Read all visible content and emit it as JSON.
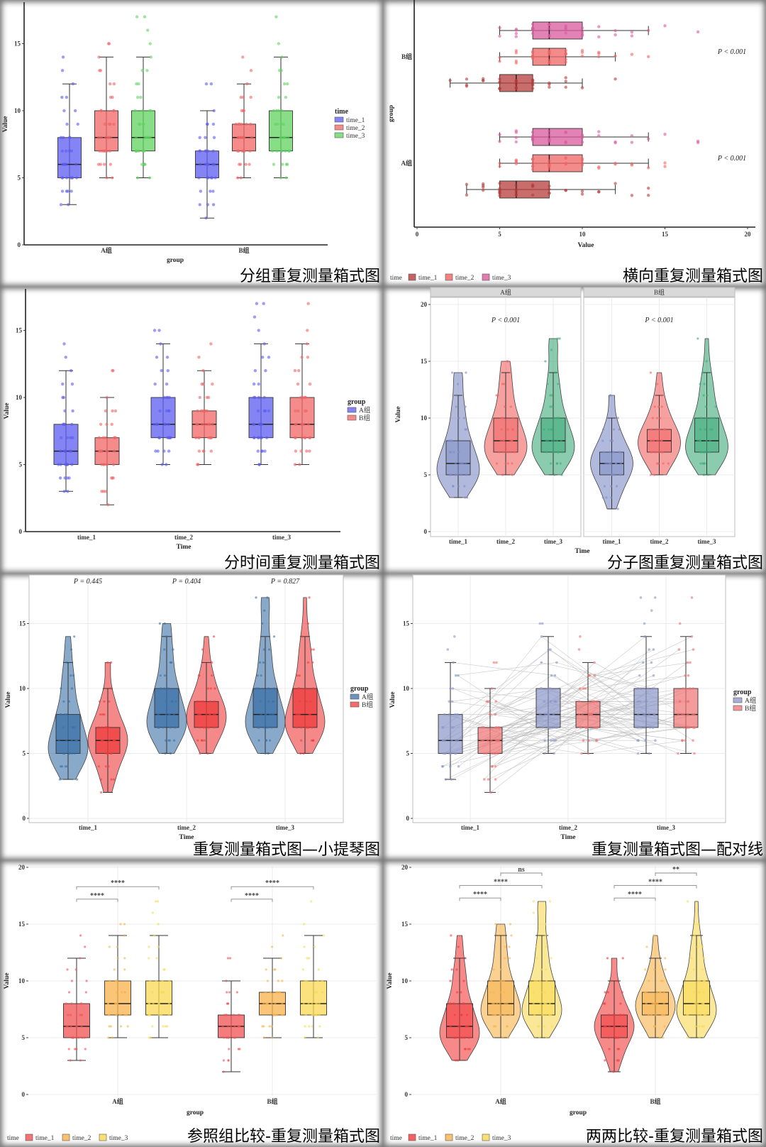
{
  "chart_data": [
    {
      "type": "box",
      "title": "分组重复测量箱式图",
      "xlabel": "group",
      "ylabel": "Value",
      "ylim": [
        0,
        18
      ],
      "yticks": [
        0,
        5,
        10,
        15
      ],
      "categories": [
        "A组",
        "B组"
      ],
      "legend": {
        "title": "time",
        "position": "right"
      },
      "series": [
        {
          "name": "time_1",
          "color": "#5b5bf0",
          "boxes": [
            [
              3,
              5,
              6,
              8,
              12
            ],
            [
              2,
              5,
              6,
              7,
              10
            ]
          ],
          "outliers": [
            [
              13,
              14
            ],
            [
              12,
              12
            ]
          ]
        },
        {
          "name": "time_2",
          "color": "#f26464",
          "boxes": [
            [
              5,
              7,
              8,
              10,
              14
            ],
            [
              5,
              7,
              8,
              9,
              12
            ]
          ],
          "outliers": [
            [
              15,
              15
            ],
            [
              13,
              14
            ]
          ]
        },
        {
          "name": "time_3",
          "color": "#5fd35f",
          "boxes": [
            [
              5,
              7,
              8,
              10,
              14
            ],
            [
              5,
              7,
              8,
              10,
              14
            ]
          ],
          "outliers": [
            [
              15,
              16,
              17,
              17
            ],
            [
              15,
              17
            ]
          ]
        }
      ]
    },
    {
      "type": "box-horizontal",
      "title": "横向重复测量箱式图",
      "xlabel": "Value",
      "ylabel": "group",
      "xlim": [
        0,
        20
      ],
      "xticks": [
        0,
        5,
        10,
        15,
        20
      ],
      "categories": [
        "A组",
        "B组"
      ],
      "annotations": [
        "P < 0.001",
        "P < 0.001"
      ],
      "legend": {
        "title": "time",
        "position": "bottom"
      },
      "series": [
        {
          "name": "time_1",
          "color": "#b53b3b",
          "boxes": [
            [
              3,
              5,
              6,
              8,
              12
            ],
            [
              2,
              5,
              6,
              7,
              10
            ]
          ],
          "outliers": [
            [
              13,
              14,
              14
            ],
            [
              12
            ]
          ]
        },
        {
          "name": "time_2",
          "color": "#f06464",
          "boxes": [
            [
              5,
              7,
              8,
              10,
              14
            ],
            [
              5,
              7,
              8,
              9,
              12
            ]
          ],
          "outliers": [
            [
              15,
              15
            ],
            [
              13,
              14
            ]
          ]
        },
        {
          "name": "time_3",
          "color": "#d95a9c",
          "boxes": [
            [
              5,
              7,
              8,
              10,
              14
            ],
            [
              5,
              7,
              8,
              10,
              14
            ]
          ],
          "outliers": [
            [
              15,
              17,
              17
            ],
            [
              15,
              17
            ]
          ]
        }
      ]
    },
    {
      "type": "box",
      "title": "分时间重复测量箱式图",
      "xlabel": "Time",
      "ylabel": "Value",
      "ylim": [
        0,
        18
      ],
      "yticks": [
        0,
        5,
        10,
        15
      ],
      "categories": [
        "time_1",
        "time_2",
        "time_3"
      ],
      "legend": {
        "title": "group",
        "position": "right"
      },
      "series": [
        {
          "name": "A组",
          "color": "#5b5bf0",
          "boxes": [
            [
              3,
              5,
              6,
              8,
              12
            ],
            [
              5,
              7,
              8,
              10,
              14
            ],
            [
              5,
              7,
              8,
              10,
              14
            ]
          ],
          "outliers": [
            [
              13,
              14
            ],
            [
              15,
              15
            ],
            [
              15,
              16,
              17,
              17
            ]
          ]
        },
        {
          "name": "B组",
          "color": "#f26464",
          "boxes": [
            [
              2,
              5,
              6,
              7,
              10
            ],
            [
              5,
              7,
              8,
              9,
              12
            ],
            [
              5,
              7,
              8,
              10,
              14
            ]
          ],
          "outliers": [
            [
              12,
              12
            ],
            [
              13,
              14
            ],
            [
              15,
              17
            ]
          ]
        }
      ]
    },
    {
      "type": "violin-facet",
      "title": "分子图重复测量箱式图",
      "xlabel": "Time",
      "ylabel": "Value",
      "ylim": [
        0,
        20
      ],
      "yticks": [
        0,
        5,
        10,
        15,
        20
      ],
      "categories": [
        "time_1",
        "time_2",
        "time_3"
      ],
      "colors": [
        "#7d8cc4",
        "#f26060",
        "#3daa78"
      ],
      "facets": [
        {
          "label": "A组",
          "annotation": "P < 0.001",
          "boxes": [
            [
              3,
              5,
              6,
              8,
              12
            ],
            [
              5,
              7,
              8,
              10,
              14
            ],
            [
              5,
              7,
              8,
              10,
              14
            ]
          ],
          "outliers": [
            [
              13,
              14,
              14
            ],
            [
              15,
              15
            ],
            [
              15,
              16,
              17,
              17
            ]
          ]
        },
        {
          "label": "B组",
          "annotation": "P < 0.001",
          "boxes": [
            [
              2,
              5,
              6,
              7,
              10
            ],
            [
              5,
              7,
              8,
              9,
              12
            ],
            [
              5,
              7,
              8,
              10,
              14
            ]
          ],
          "outliers": [
            [
              12,
              12
            ],
            [
              13,
              14
            ],
            [
              15,
              17
            ]
          ]
        }
      ]
    },
    {
      "type": "violin",
      "title": "重复测量箱式图—小提琴图",
      "xlabel": "Time",
      "ylabel": "Value",
      "ylim": [
        0,
        18
      ],
      "yticks": [
        0,
        5,
        10,
        15
      ],
      "categories": [
        "time_1",
        "time_2",
        "time_3"
      ],
      "annotations": [
        "P = 0.445",
        "P = 0.404",
        "P = 0.827"
      ],
      "legend": {
        "title": "group",
        "position": "right"
      },
      "series": [
        {
          "name": "A组",
          "color": "#3b6fa6",
          "boxes": [
            [
              3,
              5,
              6,
              8,
              12
            ],
            [
              5,
              7,
              8,
              10,
              14
            ],
            [
              5,
              7,
              8,
              10,
              14
            ]
          ],
          "outliers": [
            [
              13,
              14
            ],
            [
              15,
              15
            ],
            [
              15,
              16,
              17,
              17
            ]
          ]
        },
        {
          "name": "B组",
          "color": "#ee3b3b",
          "boxes": [
            [
              2,
              5,
              6,
              7,
              10
            ],
            [
              5,
              7,
              8,
              9,
              12
            ],
            [
              5,
              7,
              8,
              10,
              14
            ]
          ],
          "outliers": [
            [
              12,
              12
            ],
            [
              13,
              14
            ],
            [
              15,
              17
            ]
          ]
        }
      ]
    },
    {
      "type": "box-paired",
      "title": "重复测量箱式图—配对线",
      "xlabel": "Time",
      "ylabel": "Value",
      "ylim": [
        0,
        18
      ],
      "yticks": [
        0,
        5,
        10,
        15
      ],
      "categories": [
        "time_1",
        "time_2",
        "time_3"
      ],
      "legend": {
        "title": "group",
        "position": "right"
      },
      "series": [
        {
          "name": "A组",
          "color": "#8a96c8",
          "boxes": [
            [
              3,
              5,
              6,
              8,
              12
            ],
            [
              5,
              7,
              8,
              10,
              14
            ],
            [
              5,
              7,
              8,
              10,
              14
            ]
          ],
          "outliers": [
            [
              13,
              14
            ],
            [
              15,
              15
            ],
            [
              15,
              16,
              17,
              17
            ]
          ]
        },
        {
          "name": "B组",
          "color": "#f07070",
          "boxes": [
            [
              2,
              5,
              6,
              7,
              10
            ],
            [
              5,
              7,
              8,
              9,
              12
            ],
            [
              5,
              7,
              8,
              10,
              14
            ]
          ],
          "outliers": [
            [
              12,
              12
            ],
            [
              13,
              14
            ],
            [
              15,
              17
            ]
          ]
        }
      ]
    },
    {
      "type": "box",
      "title": "参照组比较-重复测量箱式图",
      "xlabel": "group",
      "ylabel": "Value",
      "ylim": [
        0,
        20
      ],
      "yticks": [
        0,
        5,
        10,
        15,
        20
      ],
      "categories": [
        "A组",
        "B组"
      ],
      "legend": {
        "title": "time",
        "position": "bottom"
      },
      "brackets": [
        {
          "cat": 0,
          "from": 0,
          "to": 1,
          "y": 17.2,
          "label": "****"
        },
        {
          "cat": 0,
          "from": 0,
          "to": 2,
          "y": 18.3,
          "label": "****"
        },
        {
          "cat": 1,
          "from": 0,
          "to": 1,
          "y": 17.2,
          "label": "****"
        },
        {
          "cat": 1,
          "from": 0,
          "to": 2,
          "y": 18.3,
          "label": "****"
        }
      ],
      "series": [
        {
          "name": "time_1",
          "color": "#f25050",
          "boxes": [
            [
              3,
              5,
              6,
              8,
              12
            ],
            [
              2,
              5,
              6,
              7,
              10
            ]
          ],
          "outliers": [
            [
              13,
              14
            ],
            [
              12,
              12
            ]
          ]
        },
        {
          "name": "time_2",
          "color": "#f8b24a",
          "boxes": [
            [
              5,
              7,
              8,
              10,
              14
            ],
            [
              5,
              7,
              8,
              9,
              12
            ]
          ],
          "outliers": [
            [
              15,
              15
            ],
            [
              13,
              14
            ]
          ]
        },
        {
          "name": "time_3",
          "color": "#f9d850",
          "boxes": [
            [
              5,
              7,
              8,
              10,
              14
            ],
            [
              5,
              7,
              8,
              10,
              14
            ]
          ],
          "outliers": [
            [
              15,
              16,
              17,
              17
            ],
            [
              15,
              17
            ]
          ]
        }
      ]
    },
    {
      "type": "violin",
      "title": "两两比较-重复测量箱式图",
      "xlabel": "group",
      "ylabel": "Value",
      "ylim": [
        0,
        20
      ],
      "yticks": [
        0,
        5,
        10,
        15,
        20
      ],
      "categories": [
        "A组",
        "B组"
      ],
      "legend": {
        "title": "time",
        "position": "bottom"
      },
      "brackets": [
        {
          "cat": 0,
          "from": 0,
          "to": 1,
          "y": 17.3,
          "label": "****"
        },
        {
          "cat": 0,
          "from": 0,
          "to": 2,
          "y": 18.4,
          "label": "****"
        },
        {
          "cat": 0,
          "from": 1,
          "to": 2,
          "y": 19.5,
          "label": "ns"
        },
        {
          "cat": 1,
          "from": 0,
          "to": 1,
          "y": 17.3,
          "label": "****"
        },
        {
          "cat": 1,
          "from": 0,
          "to": 2,
          "y": 18.4,
          "label": "****"
        },
        {
          "cat": 1,
          "from": 1,
          "to": 2,
          "y": 19.5,
          "label": "**"
        }
      ],
      "series": [
        {
          "name": "time_1",
          "color": "#f23a3a",
          "boxes": [
            [
              3,
              5,
              6,
              8,
              12
            ],
            [
              2,
              5,
              6,
              7,
              10
            ]
          ],
          "outliers": [
            [
              13,
              14
            ],
            [
              12,
              12
            ]
          ]
        },
        {
          "name": "time_2",
          "color": "#f8b24a",
          "boxes": [
            [
              5,
              7,
              8,
              10,
              14
            ],
            [
              5,
              7,
              8,
              9,
              12
            ]
          ],
          "outliers": [
            [
              15,
              15
            ],
            [
              13,
              14
            ]
          ]
        },
        {
          "name": "time_3",
          "color": "#f9d850",
          "boxes": [
            [
              5,
              7,
              8,
              10,
              14
            ],
            [
              5,
              7,
              8,
              10,
              14
            ]
          ],
          "outliers": [
            [
              15,
              16,
              17,
              17
            ],
            [
              15,
              17
            ]
          ]
        }
      ]
    }
  ]
}
